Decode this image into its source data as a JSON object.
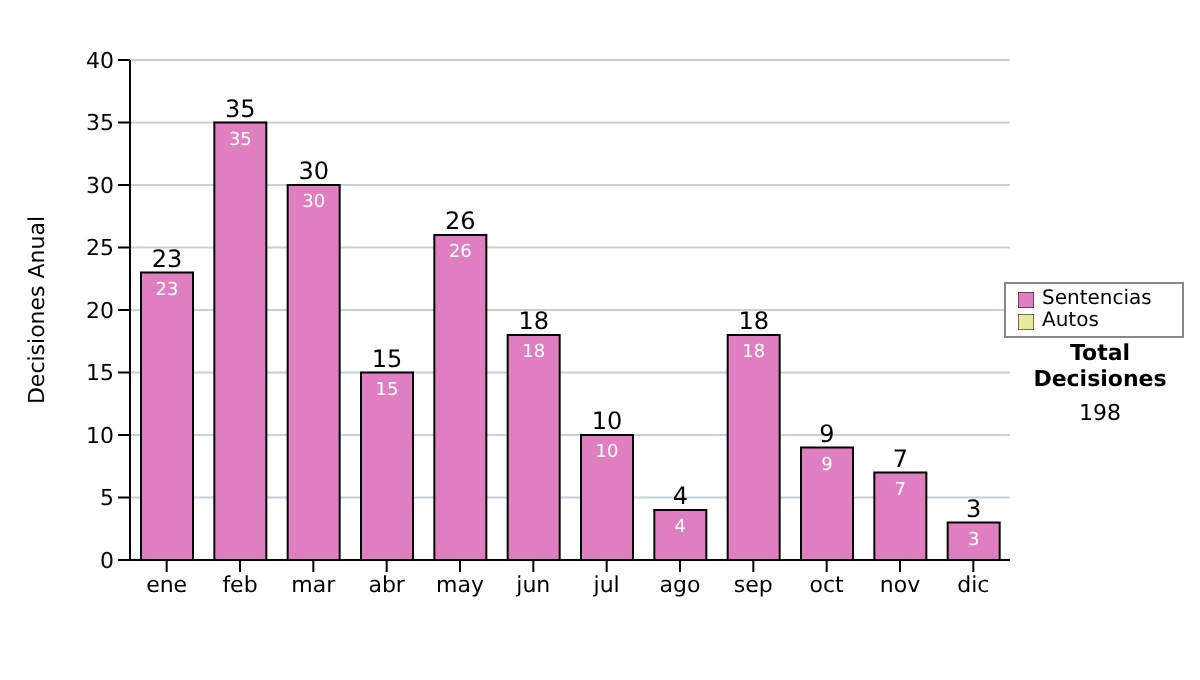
{
  "chart_data": {
    "type": "bar",
    "ylabel": "Decisiones Anual",
    "categories": [
      "ene",
      "feb",
      "mar",
      "abr",
      "may",
      "jun",
      "jul",
      "ago",
      "sep",
      "oct",
      "nov",
      "dic"
    ],
    "series": [
      {
        "name": "Sentencias",
        "color": "#e07fc0",
        "values": [
          23,
          35,
          30,
          15,
          26,
          18,
          10,
          4,
          18,
          9,
          7,
          3
        ],
        "value_labels": [
          "23",
          "35",
          "30",
          "15",
          "26",
          "18",
          "10",
          "4",
          "18",
          "9",
          "7",
          "3"
        ]
      },
      {
        "name": "Autos",
        "color": "#e8e8a0",
        "values": [
          0,
          0,
          0,
          0,
          0,
          0,
          0,
          0,
          0,
          0,
          0,
          0
        ],
        "value_labels": [
          null,
          null,
          null,
          null,
          null,
          null,
          null,
          null,
          null,
          null,
          null,
          null
        ]
      }
    ],
    "stacked": true,
    "ylim": [
      0,
      40
    ],
    "yticks": [
      0,
      5,
      10,
      15,
      20,
      25,
      30,
      35,
      40
    ],
    "grid": "y",
    "legend": "right",
    "totals": [
      "23",
      "35",
      "30",
      "15",
      "26",
      "18",
      "10",
      "4",
      "18",
      "9",
      "7",
      "3"
    ],
    "annotations": [
      "Total Decisiones",
      "198"
    ]
  }
}
